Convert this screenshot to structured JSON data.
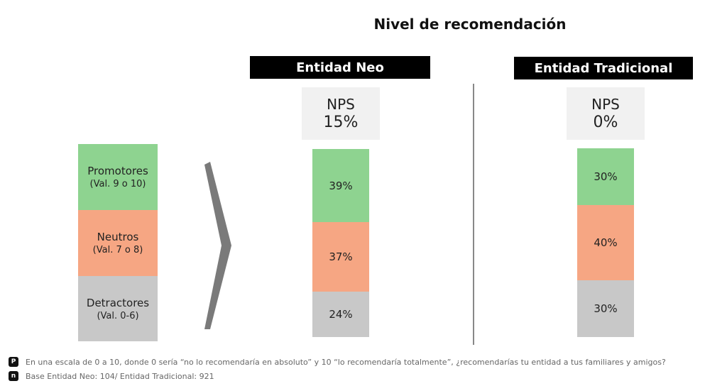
{
  "page": {
    "title": "Nivel de recomendación"
  },
  "legend": [
    {
      "label": "Promotores",
      "range": "(Val. 9 o 10)",
      "color": "#8ed390"
    },
    {
      "label": "Neutros",
      "range": "(Val. 7 o 8)",
      "color": "#f6a683"
    },
    {
      "label": "Detractores",
      "range": "(Val. 0-6)",
      "color": "#c8c8c8"
    }
  ],
  "panels": [
    {
      "header": "Entidad Neo",
      "nps_label": "NPS",
      "nps_value": "15%"
    },
    {
      "header": "Entidad Tradicional",
      "nps_label": "NPS",
      "nps_value": "0%"
    }
  ],
  "chart_data": {
    "type": "bar",
    "stacked": true,
    "categories": [
      "Entidad Neo",
      "Entidad Tradicional"
    ],
    "series": [
      {
        "name": "Promotores",
        "values": [
          39,
          30
        ],
        "labels": [
          "39%",
          "30%"
        ],
        "color": "#8ed390"
      },
      {
        "name": "Neutros",
        "values": [
          37,
          40
        ],
        "labels": [
          "37%",
          "40%"
        ],
        "color": "#f6a683"
      },
      {
        "name": "Detractores",
        "values": [
          24,
          30
        ],
        "labels": [
          "24%",
          "30%"
        ],
        "color": "#c8c8c8"
      }
    ],
    "title": "Nivel de recomendación"
  },
  "footnotes": [
    {
      "icon": "P",
      "text": "En una escala de 0 a 10, donde 0 sería “no lo recomendaría en absoluto” y 10 “lo recomendaría totalmente”, ¿recomendarías  tu entidad a tus familiares y amigos?"
    },
    {
      "icon": "n",
      "text": "Base Entidad Neo: 104/ Entidad Tradicional: 921"
    }
  ]
}
